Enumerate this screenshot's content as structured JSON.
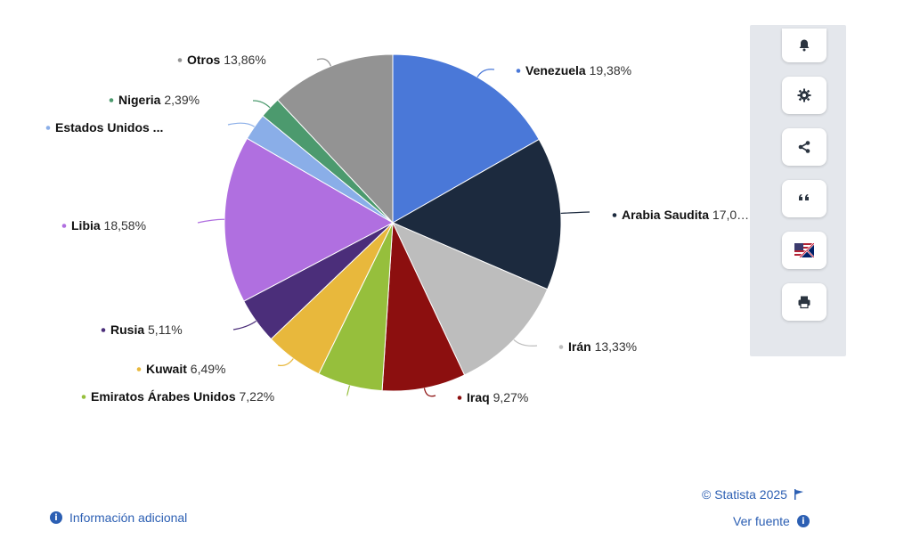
{
  "chart_data": {
    "type": "pie",
    "slices": [
      {
        "label": "Venezuela",
        "value": 19.38,
        "value_text": "19,38%",
        "color": "#4a78d8"
      },
      {
        "label": "Arabia Saudita",
        "value": 17.0,
        "value_text": "17,0…",
        "color": "#1c2a3e"
      },
      {
        "label": "Irán",
        "value": 13.33,
        "value_text": "13,33%",
        "color": "#bdbdbd"
      },
      {
        "label": "Iraq",
        "value": 9.27,
        "value_text": "9,27%",
        "color": "#8c0f0f"
      },
      {
        "label": "Emiratos Árabes Unidos",
        "value": 7.22,
        "value_text": "7,22%",
        "color": "#96bf3c"
      },
      {
        "label": "Kuwait",
        "value": 6.49,
        "value_text": "6,49%",
        "color": "#e8b83c"
      },
      {
        "label": "Rusia",
        "value": 5.11,
        "value_text": "5,11%",
        "color": "#4b2e7a"
      },
      {
        "label": "Libia",
        "value": 18.58,
        "value_text": "18,58%",
        "color": "#b06fe0"
      },
      {
        "label": "Estados Unidos ...",
        "value": 3.0,
        "value_text": "",
        "color": "#8aaee8"
      },
      {
        "label": "Nigeria",
        "value": 2.39,
        "value_text": "2,39%",
        "color": "#4c9a6e"
      },
      {
        "label": "Otros",
        "value": 13.86,
        "value_text": "13,86%",
        "color": "#939393"
      }
    ]
  },
  "toolbar": {
    "buttons": [
      {
        "icon": "bell-icon"
      },
      {
        "icon": "gear-icon"
      },
      {
        "icon": "share-icon"
      },
      {
        "icon": "quote-icon"
      },
      {
        "icon": "flag-uk-us-icon"
      },
      {
        "icon": "print-icon"
      }
    ]
  },
  "footer": {
    "copyright": "© Statista 2025",
    "source_link": "Ver fuente",
    "info_link": "Información adicional"
  },
  "colors": {
    "link": "#2c5fb3",
    "toolbar_bg": "#e4e7ec"
  }
}
